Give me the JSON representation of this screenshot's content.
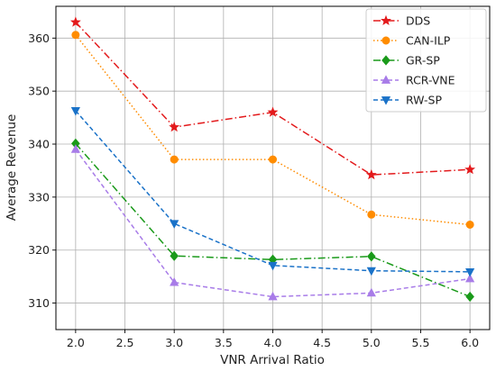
{
  "chart_data": {
    "type": "line",
    "xlabel": "VNR Arrival Ratio",
    "ylabel": "Average Revenue",
    "xlim": [
      1.8,
      6.2
    ],
    "ylim": [
      305,
      366
    ],
    "xticks": [
      "2.0",
      "2.5",
      "3.0",
      "3.5",
      "4.0",
      "4.5",
      "5.0",
      "5.5",
      "6.0"
    ],
    "yticks": [
      "310",
      "320",
      "330",
      "340",
      "350",
      "360"
    ],
    "grid": true,
    "legend_position": "top-right",
    "x": [
      2.0,
      3.0,
      4.0,
      5.0,
      6.0
    ],
    "series": [
      {
        "name": "DDS",
        "values": [
          363.0,
          343.2,
          346.0,
          334.2,
          335.2
        ],
        "color": "#e31a1c",
        "dash": "dashdot",
        "marker": "star"
      },
      {
        "name": "CAN-ILP",
        "values": [
          360.6,
          337.1,
          337.1,
          326.7,
          324.8
        ],
        "color": "#ff8c00",
        "dash": "dotted",
        "marker": "circle"
      },
      {
        "name": "GR-SP",
        "values": [
          340.1,
          318.9,
          318.2,
          318.8,
          311.2
        ],
        "color": "#1a9a1a",
        "dash": "dashdot",
        "marker": "diamond"
      },
      {
        "name": "RCR-VNE",
        "values": [
          339.0,
          313.9,
          311.2,
          311.9,
          314.6
        ],
        "color": "#a87ce8",
        "dash": "dashed",
        "marker": "triangle-up"
      },
      {
        "name": "RW-SP",
        "values": [
          346.3,
          325.0,
          317.1,
          316.1,
          315.9
        ],
        "color": "#1a72c8",
        "dash": "dashed",
        "marker": "triangle-down"
      }
    ]
  }
}
